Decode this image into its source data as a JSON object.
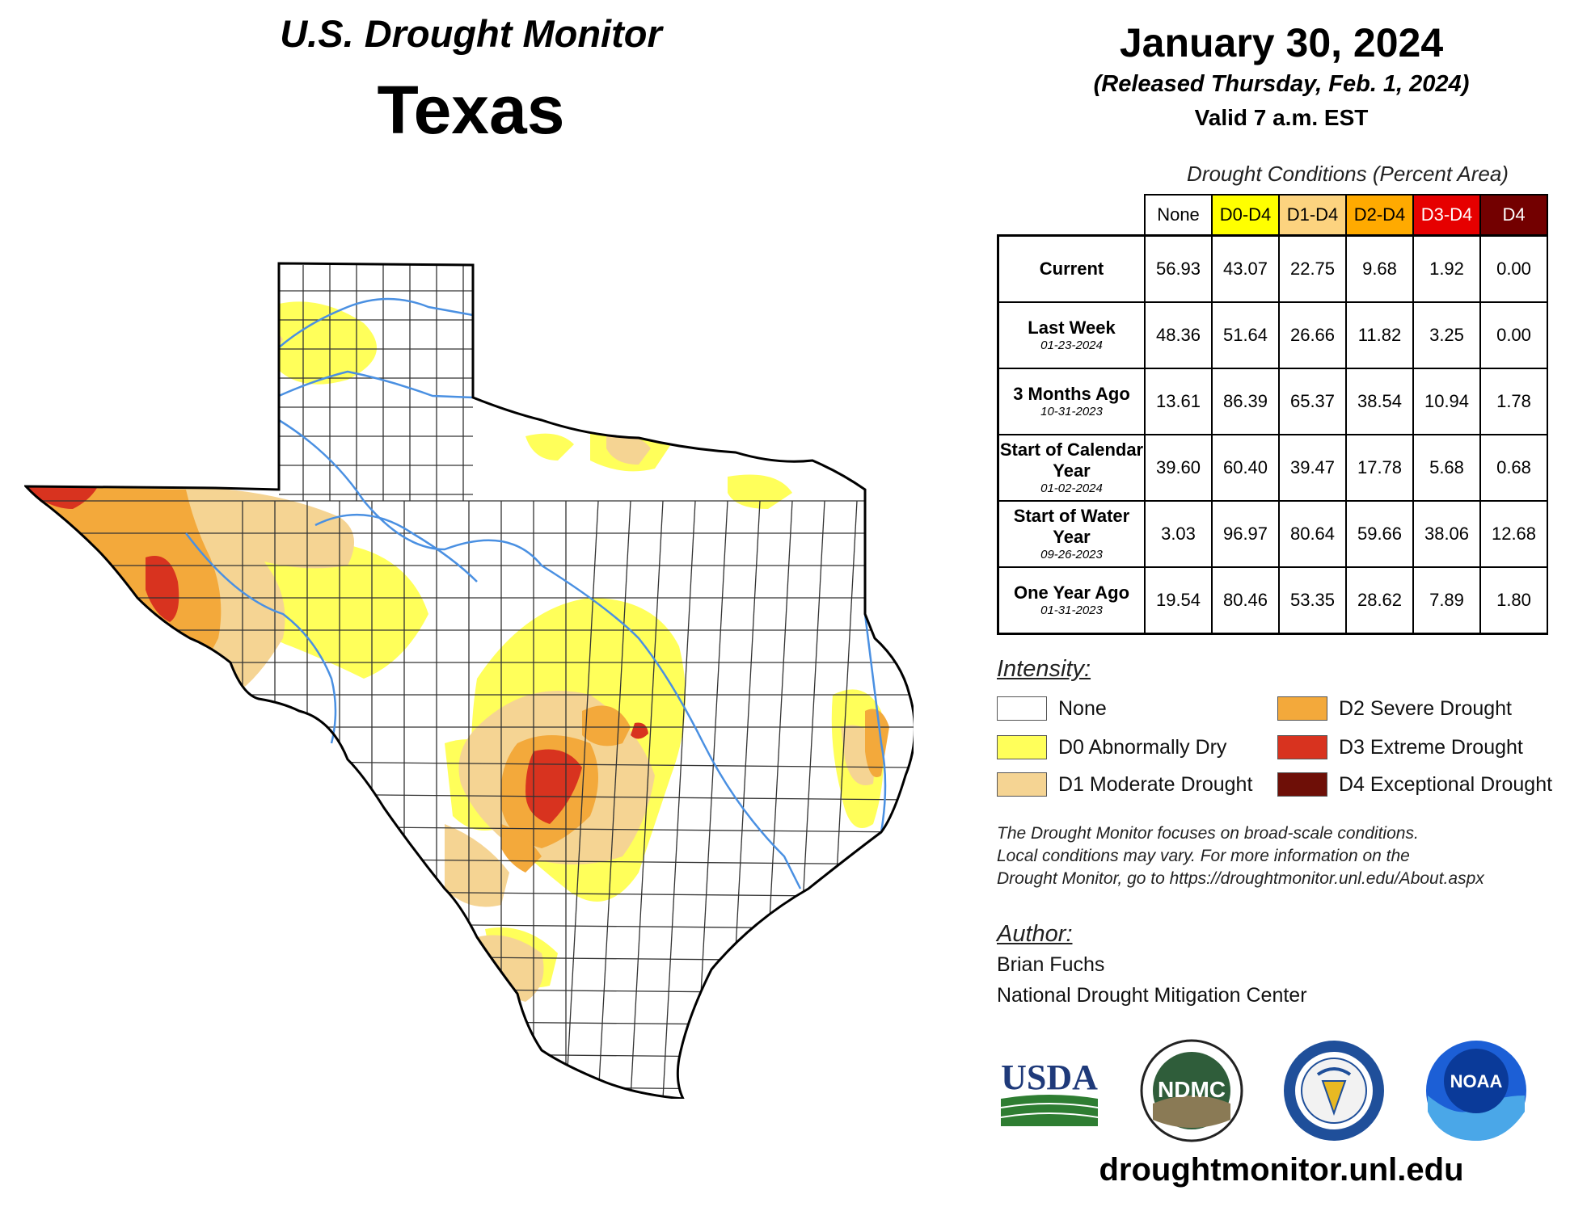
{
  "header": {
    "product": "U.S. Drought Monitor",
    "region": "Texas",
    "date": "January 30, 2024",
    "released": "(Released Thursday, Feb. 1, 2024)",
    "valid": "Valid 7 a.m. EST"
  },
  "table": {
    "caption": "Drought Conditions (Percent Area)",
    "columns": [
      {
        "label": "None",
        "color": "#ffffff"
      },
      {
        "label": "D0-D4",
        "color": "#ffff00"
      },
      {
        "label": "D1-D4",
        "color": "#fcd37f"
      },
      {
        "label": "D2-D4",
        "color": "#ffaa00"
      },
      {
        "label": "D3-D4",
        "color": "#e60000"
      },
      {
        "label": "D4",
        "color": "#730000"
      }
    ],
    "rows": [
      {
        "label": "Current",
        "date": "",
        "values": [
          "56.93",
          "43.07",
          "22.75",
          "9.68",
          "1.92",
          "0.00"
        ]
      },
      {
        "label": "Last Week",
        "date": "01-23-2024",
        "values": [
          "48.36",
          "51.64",
          "26.66",
          "11.82",
          "3.25",
          "0.00"
        ]
      },
      {
        "label": "3 Months Ago",
        "date": "10-31-2023",
        "values": [
          "13.61",
          "86.39",
          "65.37",
          "38.54",
          "10.94",
          "1.78"
        ]
      },
      {
        "label": "Start of Calendar Year",
        "date": "01-02-2024",
        "values": [
          "39.60",
          "60.40",
          "39.47",
          "17.78",
          "5.68",
          "0.68"
        ]
      },
      {
        "label": "Start of Water Year",
        "date": "09-26-2023",
        "values": [
          "3.03",
          "96.97",
          "80.64",
          "59.66",
          "38.06",
          "12.68"
        ]
      },
      {
        "label": "One Year Ago",
        "date": "01-31-2023",
        "values": [
          "19.54",
          "80.46",
          "53.35",
          "28.62",
          "7.89",
          "1.80"
        ]
      }
    ]
  },
  "legend": {
    "title": "Intensity:",
    "items": [
      {
        "label": "None",
        "color": "#ffffff"
      },
      {
        "label": "D2 Severe Drought",
        "color": "#f3a93b"
      },
      {
        "label": "D0 Abnormally Dry",
        "color": "#ffff5a"
      },
      {
        "label": "D3 Extreme Drought",
        "color": "#d8331f"
      },
      {
        "label": "D1 Moderate Drought",
        "color": "#f5d493"
      },
      {
        "label": "D4 Exceptional Drought",
        "color": "#6e0f07"
      }
    ]
  },
  "disclaimer": [
    "The Drought Monitor focuses on broad-scale conditions.",
    "Local conditions may vary. For more information on the",
    "Drought Monitor, go to https://droughtmonitor.unl.edu/About.aspx"
  ],
  "author": {
    "title": "Author:",
    "name": "Brian Fuchs",
    "org": "National Drought Mitigation Center"
  },
  "logos": [
    {
      "icon": "usda-logo",
      "text": "USDA"
    },
    {
      "icon": "ndmc-logo",
      "text": "NDMC"
    },
    {
      "icon": "commerce-seal-logo",
      "text": ""
    },
    {
      "icon": "noaa-logo",
      "text": "NOAA"
    }
  ],
  "website": "droughtmonitor.unl.edu",
  "map_colors": {
    "outline": "#000000",
    "county": "#333333",
    "river": "#4a90e2",
    "d0": "#ffff5a",
    "d1": "#f5d493",
    "d2": "#f3a93b",
    "d3": "#d8331f"
  }
}
